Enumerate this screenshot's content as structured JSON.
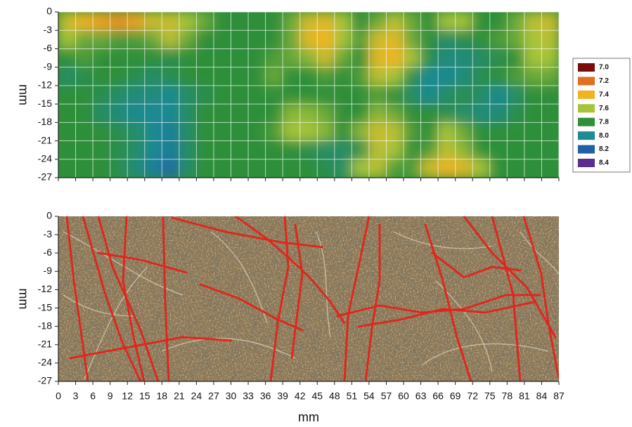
{
  "chart_data": [
    {
      "type": "heatmap",
      "y_label": "mm",
      "xbins": [
        0,
        3,
        6,
        9,
        12,
        15,
        18,
        21,
        24,
        27,
        30,
        33,
        36,
        39,
        42,
        45,
        48,
        51,
        54,
        57,
        60,
        63,
        66,
        69,
        72,
        75,
        78,
        81,
        84,
        87
      ],
      "ybins": [
        0,
        -3,
        -6,
        -9,
        -12,
        -15,
        -18,
        -21,
        -24,
        -27
      ],
      "z": [
        [
          7.5,
          7.4,
          7.35,
          7.3,
          7.35,
          7.5,
          7.5,
          7.6,
          7.7,
          7.8,
          7.8,
          7.8,
          7.8,
          7.7,
          7.5,
          7.45,
          7.6,
          7.8,
          7.7,
          7.55,
          7.7,
          7.8,
          7.6,
          7.6,
          7.8,
          7.8,
          7.7,
          7.55,
          7.5
        ],
        [
          7.6,
          7.7,
          7.7,
          7.75,
          7.75,
          7.7,
          7.55,
          7.7,
          7.8,
          7.8,
          7.8,
          7.8,
          7.8,
          7.7,
          7.45,
          7.4,
          7.6,
          7.75,
          7.5,
          7.45,
          7.7,
          7.8,
          7.9,
          7.85,
          7.8,
          7.75,
          7.7,
          7.6,
          7.55
        ],
        [
          7.8,
          7.75,
          7.8,
          7.8,
          7.8,
          7.8,
          7.85,
          7.8,
          7.8,
          7.8,
          7.8,
          7.8,
          7.75,
          7.7,
          7.65,
          7.5,
          7.7,
          7.8,
          7.45,
          7.4,
          7.6,
          7.85,
          7.95,
          7.95,
          7.9,
          7.85,
          7.8,
          7.6,
          7.6
        ],
        [
          7.9,
          7.85,
          7.8,
          7.8,
          7.85,
          7.9,
          7.85,
          7.8,
          7.8,
          7.8,
          7.8,
          7.8,
          7.7,
          7.8,
          7.8,
          7.75,
          7.8,
          7.75,
          7.55,
          7.6,
          7.85,
          8.0,
          8.0,
          7.95,
          7.85,
          7.8,
          7.75,
          7.7,
          7.7
        ],
        [
          7.8,
          7.8,
          7.85,
          7.9,
          7.95,
          7.95,
          8.0,
          7.9,
          7.85,
          7.8,
          7.8,
          7.8,
          7.8,
          7.8,
          7.8,
          7.8,
          7.8,
          7.8,
          7.75,
          7.8,
          7.9,
          8.0,
          7.9,
          7.85,
          7.9,
          8.0,
          7.9,
          7.8,
          7.8
        ],
        [
          7.8,
          7.8,
          7.9,
          7.95,
          8.0,
          8.0,
          8.0,
          7.9,
          7.8,
          7.8,
          7.8,
          7.8,
          7.8,
          7.65,
          7.65,
          7.7,
          7.8,
          7.8,
          7.65,
          7.7,
          7.8,
          7.8,
          7.85,
          7.9,
          7.95,
          7.95,
          7.85,
          7.8,
          7.8
        ],
        [
          7.8,
          7.8,
          7.8,
          7.85,
          7.9,
          8.0,
          8.05,
          7.9,
          7.8,
          7.8,
          7.8,
          7.8,
          7.75,
          7.6,
          7.6,
          7.65,
          7.8,
          7.65,
          7.5,
          7.55,
          7.75,
          7.8,
          7.6,
          7.7,
          7.8,
          7.8,
          7.8,
          7.8,
          7.8
        ],
        [
          7.8,
          7.8,
          7.8,
          7.85,
          7.9,
          8.0,
          8.05,
          7.9,
          7.8,
          7.8,
          7.8,
          7.8,
          7.8,
          7.8,
          7.85,
          7.9,
          7.9,
          7.85,
          7.55,
          7.6,
          7.8,
          7.75,
          7.55,
          7.65,
          7.8,
          7.8,
          7.8,
          7.8,
          7.8
        ],
        [
          7.8,
          7.8,
          7.8,
          7.85,
          7.95,
          8.05,
          8.15,
          7.9,
          7.8,
          7.8,
          7.8,
          7.8,
          7.8,
          7.8,
          7.8,
          7.85,
          7.9,
          7.6,
          7.55,
          7.75,
          7.75,
          7.5,
          7.4,
          7.45,
          7.6,
          7.8,
          7.8,
          7.8,
          7.8
        ]
      ],
      "colorscale": [
        {
          "value": 7,
          "label": "7.0",
          "color": "#7b0c0c"
        },
        {
          "value": 7.2,
          "label": "7.2",
          "color": "#e07020"
        },
        {
          "value": 7.4,
          "label": "7.4",
          "color": "#f0b420"
        },
        {
          "value": 7.6,
          "label": "7.6",
          "color": "#a6c43a"
        },
        {
          "value": 7.8,
          "label": "7.8",
          "color": "#2f8f3a"
        },
        {
          "value": 8,
          "label": "8.0",
          "color": "#1f8a92"
        },
        {
          "value": 8.2,
          "label": "8.2",
          "color": "#2060a8"
        },
        {
          "value": 8.4,
          "label": "8.4",
          "color": "#5a2d8f"
        }
      ],
      "legend_position": "right",
      "xlim": [
        0,
        87
      ],
      "ylim": [
        -27,
        0
      ],
      "xticks": [
        0,
        3,
        6,
        9,
        12,
        15,
        18,
        21,
        24,
        27,
        30,
        33,
        36,
        39,
        42,
        45,
        48,
        51,
        54,
        57,
        60,
        63,
        66,
        69,
        72,
        75,
        78,
        81,
        84,
        87
      ],
      "yticks": [
        0,
        -3,
        -6,
        -9,
        -12,
        -15,
        -18,
        -21,
        -24,
        -27
      ],
      "show_xtick_labels": false,
      "grid": true
    },
    {
      "type": "image",
      "x_label": "mm",
      "y_label": "mm",
      "xlim": [
        0,
        87
      ],
      "ylim": [
        -27,
        0
      ],
      "xticks": [
        0,
        3,
        6,
        9,
        12,
        15,
        18,
        21,
        24,
        27,
        30,
        33,
        36,
        39,
        42,
        45,
        48,
        51,
        54,
        57,
        60,
        63,
        66,
        69,
        72,
        75,
        78,
        81,
        84,
        87
      ],
      "yticks": [
        0,
        -3,
        -6,
        -9,
        -12,
        -15,
        -18,
        -21,
        -24,
        -27
      ],
      "show_xtick_labels": true,
      "grid": false
    }
  ]
}
